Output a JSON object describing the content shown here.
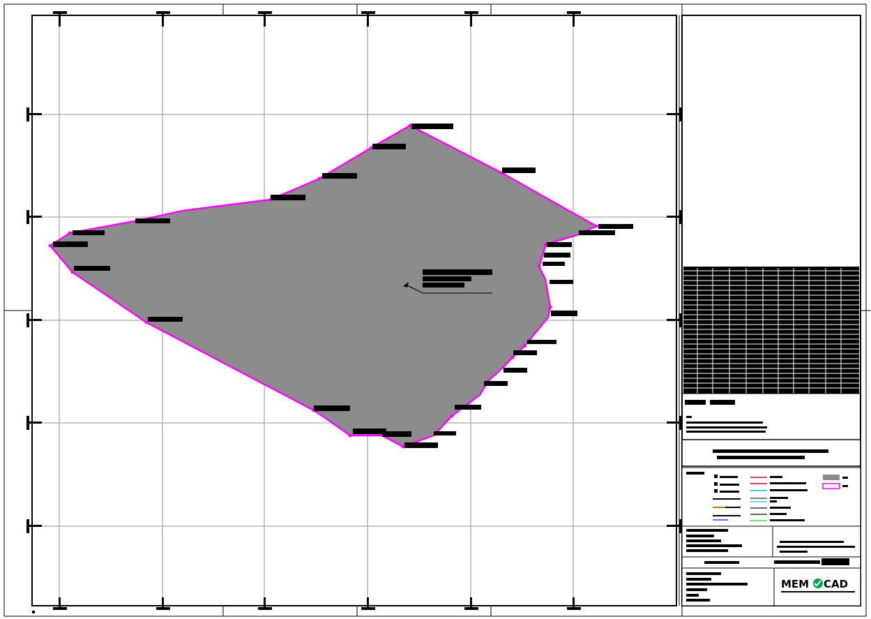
{
  "drawing": {
    "logo": {
      "left_text": "MEM",
      "right_text": "CAD",
      "accent_color": "#00a651"
    },
    "colors": {
      "parcel_fill": "#8c8c8c",
      "boundary": "#ff00ff",
      "grid": "#a6a6a6",
      "frame": "#000000"
    },
    "legend_line_colors": [
      "#cc0033",
      "#00bcd4",
      "#4fc3f7",
      "#ff9800",
      "#1e40ff",
      "#33dd33"
    ]
  }
}
